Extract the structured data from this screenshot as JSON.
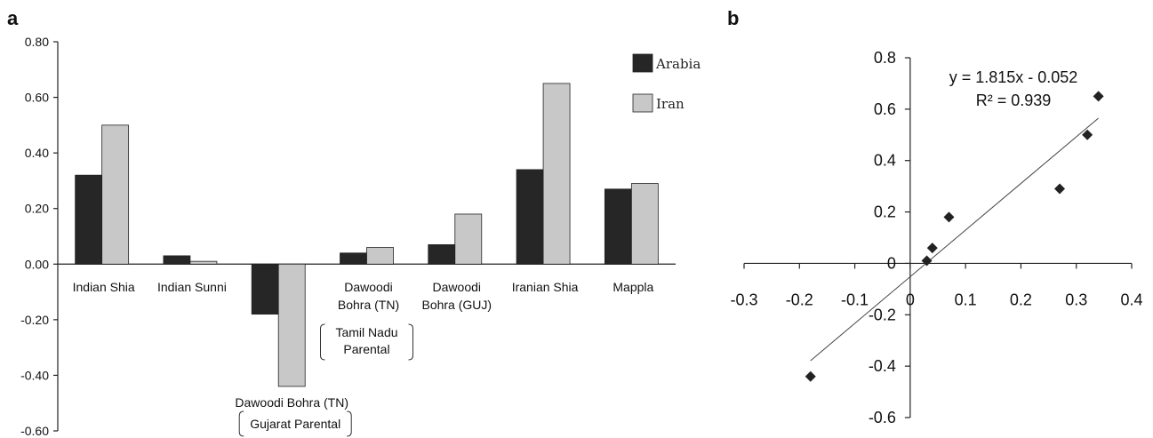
{
  "chart_data": [
    {
      "panel": "a",
      "type": "bar",
      "categories": [
        "Indian Shia",
        "Indian Sunni",
        "",
        "Dawoodi Bohra (TN)",
        "Dawoodi Bohra (GUJ)",
        "Iranian Shia",
        "Mappla"
      ],
      "series": [
        {
          "name": "Arabia",
          "values": [
            0.32,
            0.03,
            -0.18,
            0.04,
            0.07,
            0.34,
            0.27
          ]
        },
        {
          "name": "Iran",
          "values": [
            0.5,
            0.01,
            -0.44,
            0.06,
            0.18,
            0.65,
            0.29
          ]
        }
      ],
      "ylim": [
        -0.6,
        0.8
      ],
      "yticks": [
        "0.80",
        "0.60",
        "0.40",
        "0.20",
        "0.00",
        "-0.20",
        "-0.40",
        "-0.60"
      ],
      "ytick_values": [
        0.8,
        0.6,
        0.4,
        0.2,
        0.0,
        -0.2,
        -0.4,
        -0.6
      ],
      "colors": {
        "Arabia": "#262626",
        "Iran": "#c8c8c8"
      },
      "legend_position": "top-right",
      "annotations": {
        "tamil_line1": "Tamil Nadu",
        "tamil_line2": "Parental",
        "gujarat_title": "Dawoodi Bohra (TN)",
        "gujarat_bracket": "Gujarat Parental"
      },
      "category_lines": [
        [
          "Indian Shia"
        ],
        [
          "Indian Sunni"
        ],
        [],
        [
          "Dawoodi",
          "Bohra (TN)"
        ],
        [
          "Dawoodi",
          "Bohra (GUJ)"
        ],
        [
          "Iranian Shia"
        ],
        [
          "Mappla"
        ]
      ]
    },
    {
      "panel": "b",
      "type": "scatter",
      "points": [
        [
          0.32,
          0.5
        ],
        [
          0.03,
          0.01
        ],
        [
          -0.18,
          -0.44
        ],
        [
          0.04,
          0.06
        ],
        [
          0.07,
          0.18
        ],
        [
          0.34,
          0.65
        ],
        [
          0.27,
          0.29
        ]
      ],
      "trendline": {
        "slope": 1.815,
        "intercept": -0.052,
        "x_range": [
          -0.18,
          0.34
        ]
      },
      "equation": "y = 1.815x - 0.052",
      "r_squared": "R² = 0.939",
      "xlim": [
        -0.3,
        0.4
      ],
      "ylim": [
        -0.6,
        0.8
      ],
      "xticks": [
        "-0.3",
        "-0.2",
        "-0.1",
        "0",
        "0.1",
        "0.2",
        "0.3",
        "0.4"
      ],
      "xtick_values": [
        -0.3,
        -0.2,
        -0.1,
        0,
        0.1,
        0.2,
        0.3,
        0.4
      ],
      "yticks": [
        "0.8",
        "0.6",
        "0.4",
        "0.2",
        "0",
        "-0.2",
        "-0.4",
        "-0.6"
      ],
      "ytick_values": [
        0.8,
        0.6,
        0.4,
        0.2,
        0,
        -0.2,
        -0.4,
        -0.6
      ],
      "marker": "diamond",
      "color": "#222222"
    }
  ],
  "labels": {
    "panel_a": "a",
    "panel_b": "b"
  }
}
